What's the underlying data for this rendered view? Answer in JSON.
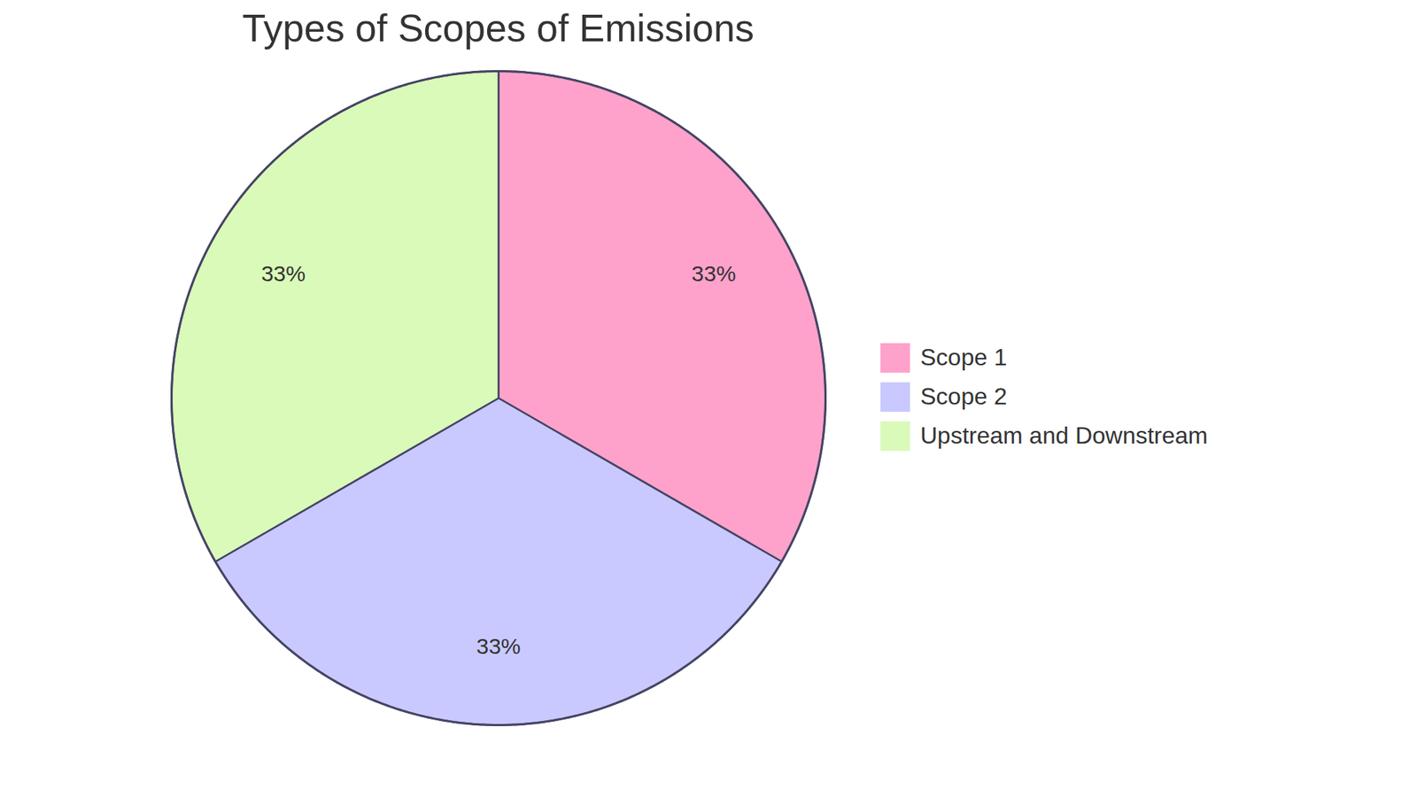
{
  "chart_data": {
    "type": "pie",
    "title": "Types of Scopes of Emissions",
    "categories": [
      "Scope 1",
      "Scope 2",
      "Upstream and Downstream"
    ],
    "values": [
      33,
      33,
      33
    ],
    "value_labels": [
      "33%",
      "33%",
      "33%"
    ],
    "colors": [
      "#ffa2cb",
      "#c9c9ff",
      "#dafab9"
    ],
    "data_labels": true,
    "legend": "right"
  }
}
